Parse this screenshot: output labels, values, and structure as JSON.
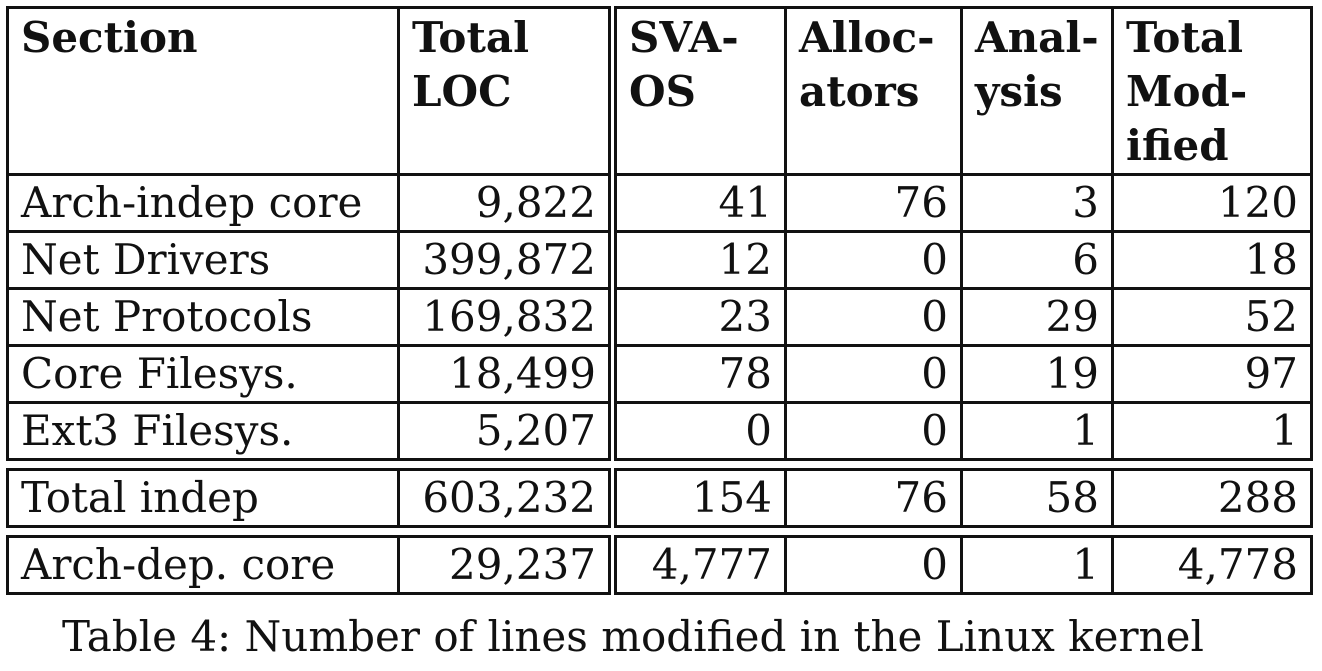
{
  "table": {
    "headers": [
      "Section",
      "Total LOC",
      "SVA-OS",
      "Alloc-ators",
      "Anal-ysis",
      "Total Mod-ified"
    ],
    "header_lines": [
      [
        "Section"
      ],
      [
        "Total",
        "LOC"
      ],
      [
        "SVA-",
        "OS"
      ],
      [
        "Alloc-",
        "ators"
      ],
      [
        "Anal-",
        "ysis"
      ],
      [
        "Total",
        "Mod-",
        "ified"
      ]
    ],
    "rows": [
      [
        "Arch-indep core",
        "9,822",
        "41",
        "76",
        "3",
        "120"
      ],
      [
        "Net Drivers",
        "399,872",
        "12",
        "0",
        "6",
        "18"
      ],
      [
        "Net Protocols",
        "169,832",
        "23",
        "0",
        "29",
        "52"
      ],
      [
        "Core Filesys.",
        "18,499",
        "78",
        "0",
        "19",
        "97"
      ],
      [
        "Ext3 Filesys.",
        "5,207",
        "0",
        "0",
        "1",
        "1"
      ]
    ],
    "total_row": [
      "Total indep",
      "603,232",
      "154",
      "76",
      "58",
      "288"
    ],
    "arch_row": [
      "Arch-dep. core",
      "29,237",
      "4,777",
      "0",
      "1",
      "4,778"
    ]
  },
  "caption": "Table 4: Number of lines modified in the Linux kernel"
}
